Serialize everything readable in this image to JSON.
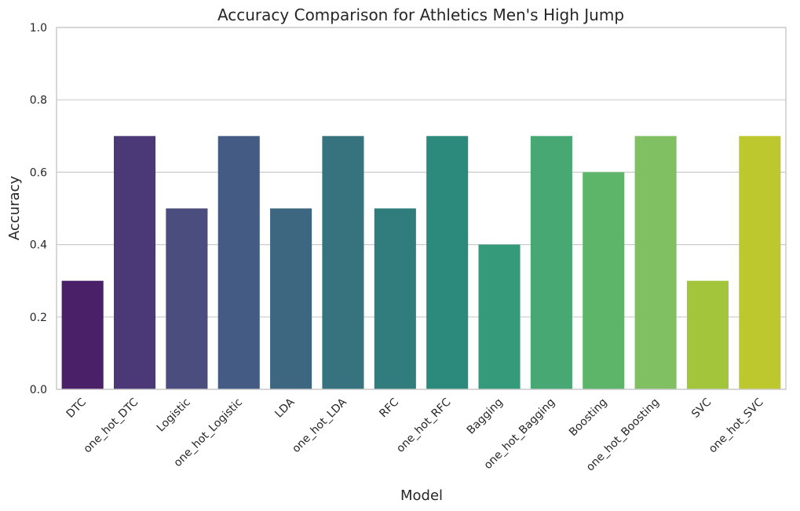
{
  "chart_data": {
    "type": "bar",
    "title": "Accuracy Comparison for Athletics Men's High Jump",
    "xlabel": "Model",
    "ylabel": "Accuracy",
    "ylim": [
      0,
      1
    ],
    "yticks": [
      0.0,
      0.2,
      0.4,
      0.6,
      0.8,
      1.0
    ],
    "ytick_labels": [
      "0.0",
      "0.2",
      "0.4",
      "0.6",
      "0.8",
      "1.0"
    ],
    "grid": true,
    "categories": [
      "DTC",
      "one_hot_DTC",
      "Logistic",
      "one_hot_Logistic",
      "LDA",
      "one_hot_LDA",
      "RFC",
      "one_hot_RFC",
      "Bagging",
      "one_hot_Bagging",
      "Boosting",
      "one_hot_Boosting",
      "SVC",
      "one_hot_SVC"
    ],
    "values": [
      0.3,
      0.7,
      0.5,
      0.7,
      0.5,
      0.7,
      0.5,
      0.7,
      0.4,
      0.7,
      0.6,
      0.7,
      0.3,
      0.7
    ],
    "colors": [
      "#4a2068",
      "#4a3877",
      "#4a4d7d",
      "#445c83",
      "#3d6681",
      "#37727f",
      "#317d7d",
      "#2c8a7c",
      "#349a79",
      "#47a874",
      "#5db56a",
      "#80c062",
      "#a2c53b",
      "#bdc82e"
    ],
    "grid_color": "#cccccc",
    "axis_color": "#cccccc"
  }
}
